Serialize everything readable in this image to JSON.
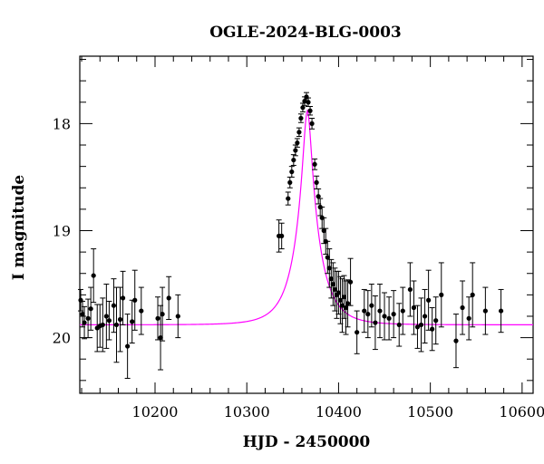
{
  "chart_data": {
    "type": "scatter",
    "title": "OGLE-2024-BLG-0003",
    "xlabel": "HJD - 2450000",
    "ylabel": "I magnitude",
    "xlim": [
      10118,
      10612
    ],
    "ylim": [
      20.52,
      17.37
    ],
    "y_inverted": true,
    "x_ticks": [
      10200,
      10300,
      10400,
      10500,
      10600
    ],
    "y_ticks": [
      18,
      19,
      20
    ],
    "x_minor_step": 20,
    "y_minor_step": 0.2,
    "grid": false,
    "legend": "none",
    "colors": {
      "data": "#000000",
      "model": "#ff00ff",
      "axes": "#000000"
    },
    "model": {
      "name": "",
      "type": "microlensing-point-lens",
      "t0": 10366,
      "u0": 0.16,
      "tE": 26,
      "baseline_mag": 19.88,
      "blend_fraction": 1.0
    },
    "series": [
      {
        "type": "errorbar",
        "points": [
          {
            "x": 10119,
            "y": 19.65,
            "err": 0.1
          },
          {
            "x": 10121,
            "y": 19.78,
            "err": 0.12
          },
          {
            "x": 10123,
            "y": 19.86,
            "err": 0.15
          },
          {
            "x": 10127,
            "y": 19.82,
            "err": 0.18
          },
          {
            "x": 10130,
            "y": 19.73,
            "err": 0.2
          },
          {
            "x": 10133,
            "y": 19.42,
            "err": 0.25
          },
          {
            "x": 10137,
            "y": 19.91,
            "err": 0.22
          },
          {
            "x": 10140,
            "y": 19.89,
            "err": 0.2
          },
          {
            "x": 10143,
            "y": 19.88,
            "err": 0.25
          },
          {
            "x": 10147,
            "y": 19.8,
            "err": 0.3
          },
          {
            "x": 10150,
            "y": 19.84,
            "err": 0.18
          },
          {
            "x": 10155,
            "y": 19.7,
            "err": 0.25
          },
          {
            "x": 10158,
            "y": 19.88,
            "err": 0.35
          },
          {
            "x": 10162,
            "y": 19.83,
            "err": 0.3
          },
          {
            "x": 10165,
            "y": 19.63,
            "err": 0.25
          },
          {
            "x": 10170,
            "y": 20.08,
            "err": 0.3
          },
          {
            "x": 10175,
            "y": 19.85,
            "err": 0.2
          },
          {
            "x": 10178,
            "y": 19.65,
            "err": 0.28
          },
          {
            "x": 10185,
            "y": 19.75,
            "err": 0.22
          },
          {
            "x": 10203,
            "y": 19.82,
            "err": 0.2
          },
          {
            "x": 10206,
            "y": 20.0,
            "err": 0.3
          },
          {
            "x": 10208,
            "y": 19.78,
            "err": 0.25
          },
          {
            "x": 10215,
            "y": 19.63,
            "err": 0.2
          },
          {
            "x": 10225,
            "y": 19.8,
            "err": 0.2
          },
          {
            "x": 10335,
            "y": 19.05,
            "err": 0.15
          },
          {
            "x": 10338,
            "y": 19.05,
            "err": 0.12
          },
          {
            "x": 10345,
            "y": 18.7,
            "err": 0.06
          },
          {
            "x": 10347,
            "y": 18.55,
            "err": 0.05
          },
          {
            "x": 10349,
            "y": 18.45,
            "err": 0.05
          },
          {
            "x": 10351,
            "y": 18.34,
            "err": 0.05
          },
          {
            "x": 10353,
            "y": 18.25,
            "err": 0.05
          },
          {
            "x": 10355,
            "y": 18.18,
            "err": 0.04
          },
          {
            "x": 10357,
            "y": 18.08,
            "err": 0.04
          },
          {
            "x": 10359,
            "y": 17.95,
            "err": 0.04
          },
          {
            "x": 10361,
            "y": 17.85,
            "err": 0.04
          },
          {
            "x": 10363,
            "y": 17.79,
            "err": 0.04
          },
          {
            "x": 10365,
            "y": 17.75,
            "err": 0.04
          },
          {
            "x": 10367,
            "y": 17.8,
            "err": 0.04
          },
          {
            "x": 10369,
            "y": 17.88,
            "err": 0.04
          },
          {
            "x": 10371,
            "y": 18.0,
            "err": 0.05
          },
          {
            "x": 10374,
            "y": 18.38,
            "err": 0.05
          },
          {
            "x": 10376,
            "y": 18.55,
            "err": 0.06
          },
          {
            "x": 10378,
            "y": 18.68,
            "err": 0.07
          },
          {
            "x": 10380,
            "y": 18.78,
            "err": 0.08
          },
          {
            "x": 10382,
            "y": 18.88,
            "err": 0.1
          },
          {
            "x": 10384,
            "y": 19.0,
            "err": 0.12
          },
          {
            "x": 10386,
            "y": 19.1,
            "err": 0.12
          },
          {
            "x": 10388,
            "y": 19.25,
            "err": 0.15
          },
          {
            "x": 10390,
            "y": 19.35,
            "err": 0.18
          },
          {
            "x": 10392,
            "y": 19.45,
            "err": 0.18
          },
          {
            "x": 10394,
            "y": 19.5,
            "err": 0.2
          },
          {
            "x": 10396,
            "y": 19.55,
            "err": 0.2
          },
          {
            "x": 10398,
            "y": 19.6,
            "err": 0.22
          },
          {
            "x": 10400,
            "y": 19.58,
            "err": 0.2
          },
          {
            "x": 10402,
            "y": 19.65,
            "err": 0.22
          },
          {
            "x": 10404,
            "y": 19.7,
            "err": 0.25
          },
          {
            "x": 10406,
            "y": 19.62,
            "err": 0.2
          },
          {
            "x": 10408,
            "y": 19.72,
            "err": 0.25
          },
          {
            "x": 10410,
            "y": 19.68,
            "err": 0.22
          },
          {
            "x": 10413,
            "y": 19.48,
            "err": 0.22
          },
          {
            "x": 10420,
            "y": 19.95,
            "err": 0.2
          },
          {
            "x": 10428,
            "y": 19.75,
            "err": 0.2
          },
          {
            "x": 10432,
            "y": 19.78,
            "err": 0.22
          },
          {
            "x": 10436,
            "y": 19.7,
            "err": 0.2
          },
          {
            "x": 10440,
            "y": 19.86,
            "err": 0.25
          },
          {
            "x": 10445,
            "y": 19.75,
            "err": 0.25
          },
          {
            "x": 10450,
            "y": 19.8,
            "err": 0.22
          },
          {
            "x": 10455,
            "y": 19.82,
            "err": 0.2
          },
          {
            "x": 10460,
            "y": 19.78,
            "err": 0.22
          },
          {
            "x": 10466,
            "y": 19.88,
            "err": 0.2
          },
          {
            "x": 10470,
            "y": 19.75,
            "err": 0.22
          },
          {
            "x": 10478,
            "y": 19.55,
            "err": 0.25
          },
          {
            "x": 10482,
            "y": 19.72,
            "err": 0.25
          },
          {
            "x": 10486,
            "y": 19.9,
            "err": 0.2
          },
          {
            "x": 10490,
            "y": 19.88,
            "err": 0.25
          },
          {
            "x": 10494,
            "y": 19.8,
            "err": 0.25
          },
          {
            "x": 10498,
            "y": 19.65,
            "err": 0.28
          },
          {
            "x": 10502,
            "y": 19.92,
            "err": 0.2
          },
          {
            "x": 10506,
            "y": 19.84,
            "err": 0.22
          },
          {
            "x": 10512,
            "y": 19.6,
            "err": 0.3
          },
          {
            "x": 10528,
            "y": 20.03,
            "err": 0.25
          },
          {
            "x": 10535,
            "y": 19.72,
            "err": 0.25
          },
          {
            "x": 10542,
            "y": 19.82,
            "err": 0.2
          },
          {
            "x": 10546,
            "y": 19.6,
            "err": 0.3
          },
          {
            "x": 10560,
            "y": 19.75,
            "err": 0.22
          },
          {
            "x": 10577,
            "y": 19.75,
            "err": 0.2
          }
        ]
      }
    ]
  }
}
